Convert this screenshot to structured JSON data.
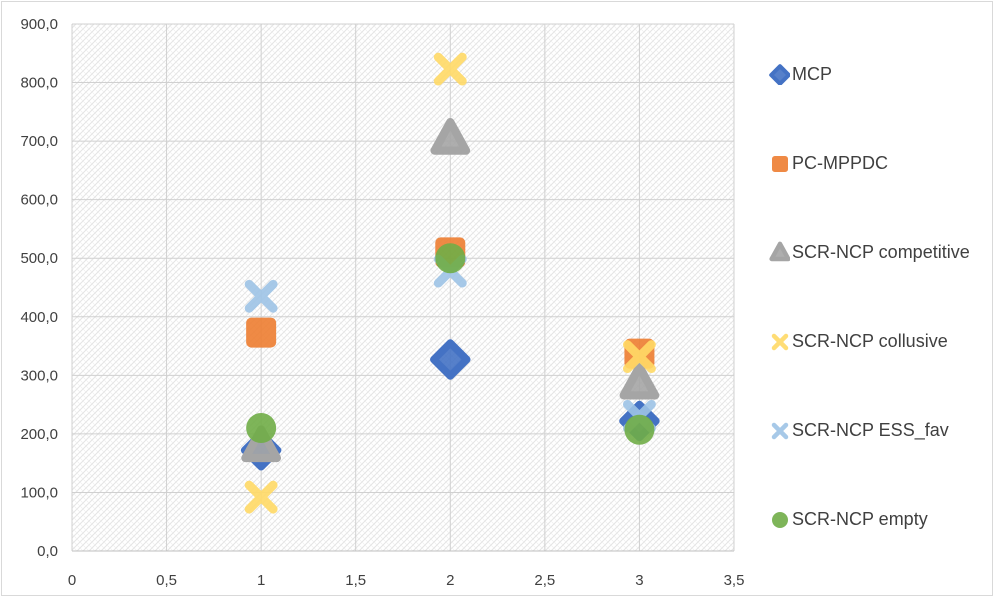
{
  "chart_data": {
    "type": "scatter",
    "title": "",
    "xlabel": "",
    "ylabel": "",
    "xlim": [
      0,
      3.5
    ],
    "ylim": [
      0,
      900
    ],
    "x_ticks": [
      "0",
      "0,5",
      "1",
      "1,5",
      "2",
      "2,5",
      "3",
      "3,5"
    ],
    "y_ticks": [
      "0,0",
      "100,0",
      "200,0",
      "300,0",
      "400,0",
      "500,0",
      "600,0",
      "700,0",
      "800,0",
      "900,0"
    ],
    "grid": true,
    "legend_position": "right",
    "series": [
      {
        "name": "MCP",
        "color": "#4472c4",
        "marker": "diamond",
        "points": [
          [
            1,
            172
          ],
          [
            2,
            327
          ],
          [
            3,
            222
          ]
        ]
      },
      {
        "name": "PC-MPPDC",
        "color": "#ed7d31",
        "marker": "square",
        "points": [
          [
            1,
            373
          ],
          [
            2,
            510
          ],
          [
            3,
            337
          ]
        ]
      },
      {
        "name": "SCR-NCP competitive",
        "color": "#a5a5a5",
        "marker": "triangle",
        "points": [
          [
            1,
            178
          ],
          [
            2,
            703
          ],
          [
            3,
            285
          ]
        ]
      },
      {
        "name": "SCR-NCP collusive",
        "color": "#ffd966",
        "marker": "cross",
        "points": [
          [
            1,
            92
          ],
          [
            2,
            823
          ],
          [
            3,
            332
          ]
        ]
      },
      {
        "name": "SCR-NCP ESS_fav",
        "color": "#9dc3e6",
        "marker": "cross",
        "points": [
          [
            1,
            435
          ],
          [
            2,
            478
          ],
          [
            3,
            230
          ]
        ]
      },
      {
        "name": "SCR-NCP empty",
        "color": "#70ad47",
        "marker": "circle",
        "points": [
          [
            1,
            210
          ],
          [
            2,
            500
          ],
          [
            3,
            207
          ]
        ]
      }
    ]
  }
}
